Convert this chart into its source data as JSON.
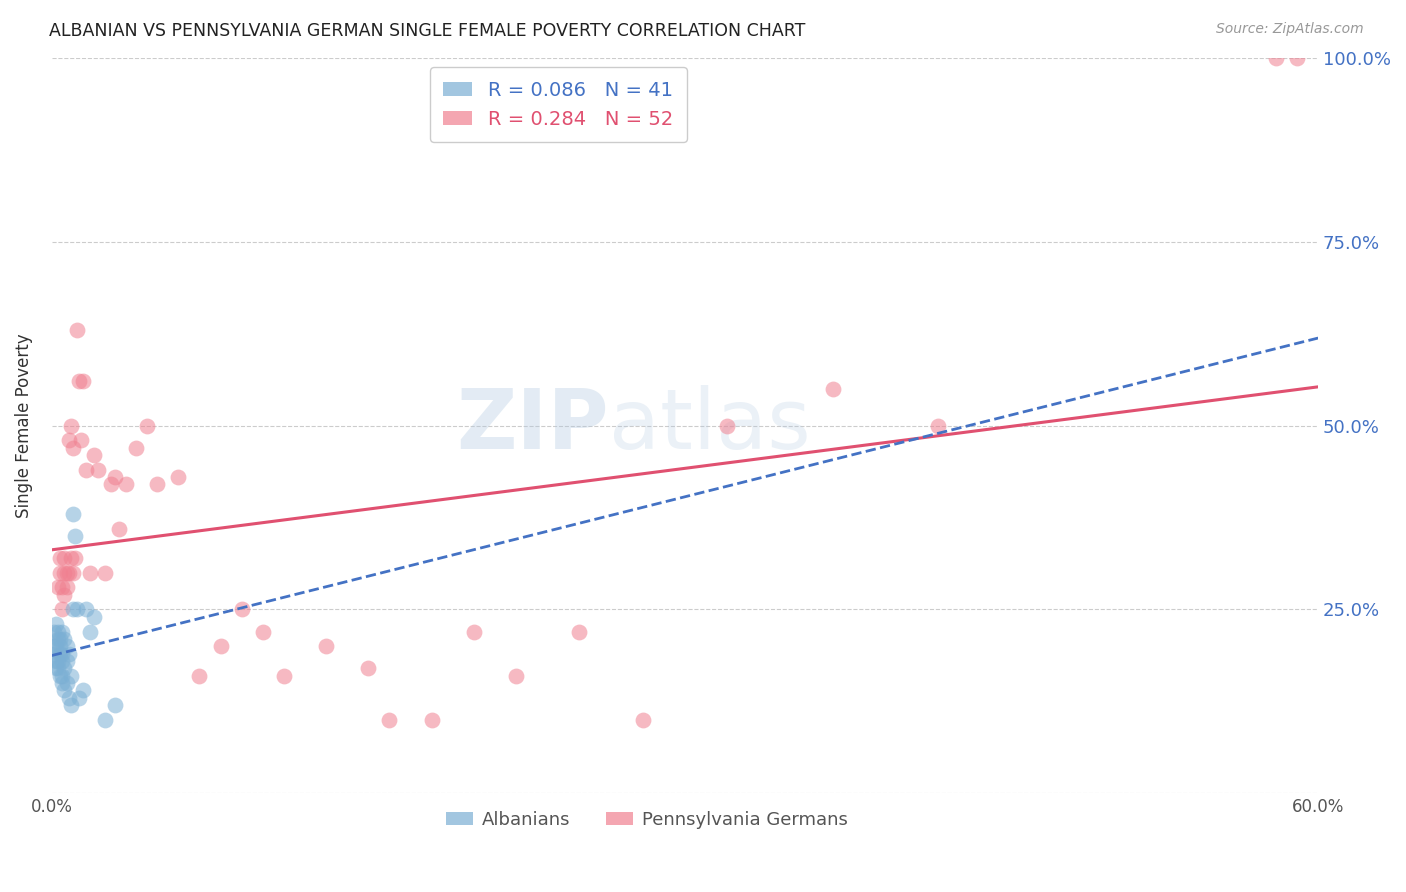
{
  "title": "ALBANIAN VS PENNSYLVANIA GERMAN SINGLE FEMALE POVERTY CORRELATION CHART",
  "source": "Source: ZipAtlas.com",
  "ylabel": "Single Female Poverty",
  "xlim": [
    0.0,
    0.6
  ],
  "ylim": [
    0.0,
    1.0
  ],
  "watermark_zip": "ZIP",
  "watermark_atlas": "atlas",
  "albanian_color": "#7bafd4",
  "penn_german_color": "#f08090",
  "albanian_line_color": "#4472c4",
  "penn_german_line_color": "#e05070",
  "albanian_R": 0.086,
  "albanian_N": 41,
  "penn_german_R": 0.284,
  "penn_german_N": 52,
  "albanian_x": [
    0.001,
    0.001,
    0.001,
    0.002,
    0.002,
    0.002,
    0.002,
    0.003,
    0.003,
    0.003,
    0.003,
    0.004,
    0.004,
    0.004,
    0.004,
    0.005,
    0.005,
    0.005,
    0.005,
    0.005,
    0.006,
    0.006,
    0.006,
    0.007,
    0.007,
    0.007,
    0.008,
    0.008,
    0.009,
    0.009,
    0.01,
    0.01,
    0.011,
    0.012,
    0.013,
    0.015,
    0.016,
    0.018,
    0.02,
    0.025,
    0.03
  ],
  "albanian_y": [
    0.19,
    0.2,
    0.22,
    0.17,
    0.18,
    0.2,
    0.23,
    0.17,
    0.21,
    0.18,
    0.22,
    0.16,
    0.19,
    0.2,
    0.21,
    0.15,
    0.16,
    0.18,
    0.19,
    0.22,
    0.14,
    0.17,
    0.21,
    0.15,
    0.18,
    0.2,
    0.13,
    0.19,
    0.12,
    0.16,
    0.25,
    0.38,
    0.35,
    0.25,
    0.13,
    0.14,
    0.25,
    0.22,
    0.24,
    0.1,
    0.12
  ],
  "penn_german_x": [
    0.003,
    0.004,
    0.004,
    0.005,
    0.005,
    0.006,
    0.006,
    0.006,
    0.007,
    0.007,
    0.008,
    0.008,
    0.009,
    0.009,
    0.01,
    0.01,
    0.011,
    0.012,
    0.013,
    0.014,
    0.015,
    0.016,
    0.018,
    0.02,
    0.022,
    0.025,
    0.028,
    0.03,
    0.032,
    0.035,
    0.04,
    0.045,
    0.05,
    0.06,
    0.07,
    0.08,
    0.09,
    0.1,
    0.11,
    0.13,
    0.15,
    0.16,
    0.18,
    0.2,
    0.22,
    0.25,
    0.28,
    0.32,
    0.37,
    0.42,
    0.58,
    0.59
  ],
  "penn_german_y": [
    0.28,
    0.3,
    0.32,
    0.25,
    0.28,
    0.3,
    0.27,
    0.32,
    0.28,
    0.3,
    0.48,
    0.3,
    0.5,
    0.32,
    0.47,
    0.3,
    0.32,
    0.63,
    0.56,
    0.48,
    0.56,
    0.44,
    0.3,
    0.46,
    0.44,
    0.3,
    0.42,
    0.43,
    0.36,
    0.42,
    0.47,
    0.5,
    0.42,
    0.43,
    0.16,
    0.2,
    0.25,
    0.22,
    0.16,
    0.2,
    0.17,
    0.1,
    0.1,
    0.22,
    0.16,
    0.22,
    0.1,
    0.5,
    0.55,
    0.5,
    1.0,
    1.0
  ]
}
